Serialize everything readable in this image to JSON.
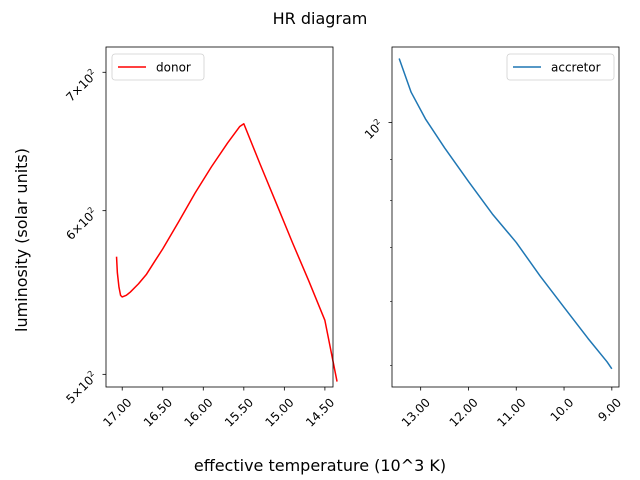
{
  "figure": {
    "title": "HR diagram",
    "xlabel": "effective temperature (10^3 K)",
    "ylabel": "luminosity (solar units)"
  },
  "chart_data": [
    {
      "type": "line",
      "x_reversed": true,
      "y_scale": "log",
      "xlim": [
        17.2,
        14.4
      ],
      "ylim": [
        493,
        720
      ],
      "xticks": [
        {
          "value": 17.0,
          "label": "17.00"
        },
        {
          "value": 16.5,
          "label": "16.50"
        },
        {
          "value": 16.0,
          "label": "16.00"
        },
        {
          "value": 15.5,
          "label": "15.50"
        },
        {
          "value": 15.0,
          "label": "15.00"
        },
        {
          "value": 14.5,
          "label": "14.50"
        }
      ],
      "yticks": [
        {
          "value": 500,
          "mantissa": "5",
          "exponent": "2"
        },
        {
          "value": 600,
          "mantissa": "6",
          "exponent": "2"
        },
        {
          "value": 700,
          "mantissa": "7",
          "exponent": "2"
        }
      ],
      "legend_position": "top-left",
      "series": [
        {
          "name": "donor",
          "color": "#ff0000",
          "x": [
            17.07,
            17.06,
            17.04,
            17.02,
            17.0,
            16.95,
            16.9,
            16.8,
            16.7,
            16.6,
            16.5,
            16.3,
            16.1,
            15.9,
            15.7,
            15.55,
            15.5,
            15.3,
            15.1,
            14.9,
            14.7,
            14.5,
            14.35
          ],
          "y": [
            570,
            560,
            551,
            546,
            545,
            546,
            548,
            553,
            559,
            567,
            575,
            593,
            612,
            630,
            647,
            659,
            661,
            632,
            605,
            579,
            555,
            531,
            496
          ]
        }
      ]
    },
    {
      "type": "line",
      "x_reversed": true,
      "y_scale": "log",
      "xlim": [
        13.6,
        8.85
      ],
      "ylim": [
        47,
        124
      ],
      "xticks": [
        {
          "value": 13.0,
          "label": "13.00"
        },
        {
          "value": 12.0,
          "label": "12.00"
        },
        {
          "value": 11.0,
          "label": "11.00"
        },
        {
          "value": 10.0,
          "label": "10.0"
        },
        {
          "value": 9.0,
          "label": "9.00"
        }
      ],
      "yticks": [
        {
          "value": 100,
          "mantissa": "10",
          "exponent": "2"
        }
      ],
      "y_minor_ticks": [
        50,
        60,
        70,
        80,
        90
      ],
      "legend_position": "top-right",
      "series": [
        {
          "name": "accretor",
          "color": "#1f77b4",
          "x": [
            13.45,
            13.2,
            12.9,
            12.5,
            12.0,
            11.5,
            11.0,
            10.5,
            10.0,
            9.5,
            9.1,
            9.0
          ],
          "y": [
            120,
            109,
            101,
            93,
            84.5,
            77,
            71,
            64.5,
            59,
            54,
            50.5,
            49.5
          ]
        }
      ]
    }
  ]
}
